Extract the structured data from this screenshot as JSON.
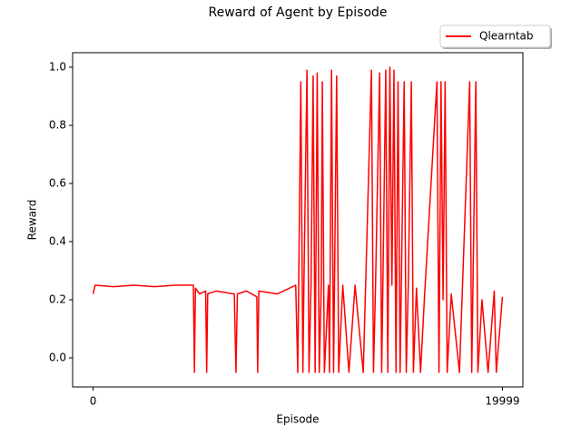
{
  "chart_data": {
    "type": "line",
    "title": "Reward of Agent by Episode",
    "x_label": "Episode",
    "y_label": "Reward",
    "xlim": [
      -1000,
      21000
    ],
    "xticks": [
      0,
      19999
    ],
    "ylim": [
      -0.1,
      1.05
    ],
    "yticks": [
      {
        "value": 0,
        "label": "0.0"
      },
      0.2,
      0.4,
      0.6,
      0.8,
      {
        "value": 1,
        "label": "1.0"
      }
    ],
    "grid": false,
    "legend": "upper right",
    "x": [
      0,
      100,
      1000,
      2000,
      3000,
      4000,
      4900,
      4950,
      5000,
      5200,
      5500,
      5550,
      5600,
      6000,
      6900,
      6980,
      7050,
      7500,
      8000,
      8040,
      8100,
      9000,
      9900,
      10000,
      10150,
      10250,
      10300,
      10450,
      10550,
      10650,
      10750,
      10850,
      10950,
      11050,
      11150,
      11200,
      11300,
      11500,
      11550,
      11650,
      11750,
      11900,
      12000,
      12200,
      12500,
      12800,
      13200,
      13600,
      13700,
      13800,
      14000,
      14100,
      14300,
      14400,
      14500,
      14600,
      14700,
      14800,
      14900,
      15000,
      15200,
      15300,
      15400,
      15550,
      15650,
      15800,
      16000,
      16200,
      16800,
      16900,
      17000,
      17100,
      17200,
      17300,
      17500,
      17900,
      18400,
      18500,
      18700,
      18800,
      19000,
      19300,
      19600,
      19700,
      19999
    ],
    "series": [
      {
        "name": "Qlearntab",
        "color": "#ff0000",
        "values": [
          0.22,
          0.25,
          0.245,
          0.25,
          0.245,
          0.25,
          0.25,
          -0.05,
          0.24,
          0.22,
          0.23,
          -0.05,
          0.22,
          0.23,
          0.22,
          -0.05,
          0.22,
          0.23,
          0.21,
          -0.05,
          0.23,
          0.22,
          0.25,
          -0.05,
          0.95,
          -0.05,
          0.25,
          0.99,
          -0.05,
          0.25,
          0.97,
          -0.05,
          0.98,
          -0.05,
          0.25,
          0.95,
          -0.05,
          0.25,
          -0.05,
          0.99,
          -0.05,
          0.97,
          -0.05,
          0.25,
          -0.05,
          0.25,
          -0.05,
          0.99,
          -0.05,
          0.25,
          0.98,
          -0.05,
          0.99,
          -0.05,
          1.0,
          0.25,
          0.99,
          -0.05,
          0.95,
          -0.05,
          0.95,
          -0.05,
          0.25,
          0.95,
          -0.05,
          0.24,
          -0.05,
          0.22,
          0.95,
          -0.05,
          0.95,
          0.2,
          0.95,
          -0.05,
          0.22,
          -0.05,
          0.95,
          -0.05,
          0.95,
          -0.05,
          0.2,
          -0.05,
          0.23,
          -0.05,
          0.21
        ]
      }
    ]
  }
}
